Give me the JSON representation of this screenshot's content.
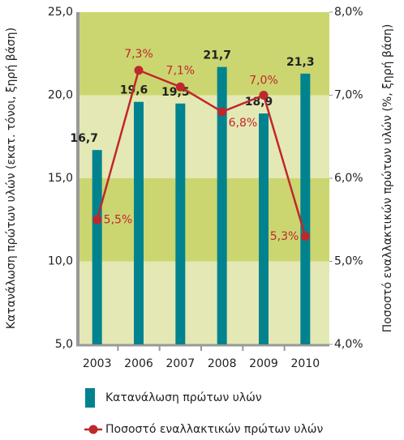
{
  "chart_data": {
    "type": "bar_line",
    "categories": [
      "2003",
      "2006",
      "2007",
      "2008",
      "2009",
      "2010"
    ],
    "series": [
      {
        "name": "Κατανάλωση πρώτων υλών",
        "type": "bar",
        "color": "#00838f",
        "values": [
          16.7,
          19.6,
          19.5,
          21.7,
          18.9,
          21.3
        ],
        "value_labels": [
          "16,7",
          "19,6",
          "19,5",
          "21,7",
          "18,9",
          "21,3"
        ]
      },
      {
        "name": "Ποσοστό εναλλακτικών πρώτων υλών",
        "type": "line",
        "axis": "y2",
        "color": "#c0272d",
        "values": [
          5.5,
          7.3,
          7.1,
          6.8,
          7.0,
          5.3
        ],
        "value_labels": [
          "5,5%",
          "7,3%",
          "7,1%",
          "6,8%",
          "7,0%",
          "5,3%"
        ]
      }
    ],
    "ylabel": "Κατανάλωση πρώτων υλών (εκατ. τόνοι, ξηρή βάση)",
    "y2label": "Ποσοστό εναλλακτικών πρώτων υλών (%, ξηρή βάση)",
    "ylim": [
      5,
      25
    ],
    "yticks": [
      {
        "value": 5,
        "label": "5,0"
      },
      {
        "value": 10,
        "label": "10,0"
      },
      {
        "value": 15,
        "label": "15,0"
      },
      {
        "value": 20,
        "label": "20,0"
      },
      {
        "value": 25,
        "label": "25,0"
      }
    ],
    "y2lim": [
      4,
      8
    ],
    "y2ticks": [
      {
        "value": 4,
        "label": "4,0%"
      },
      {
        "value": 5,
        "label": "5,0%"
      },
      {
        "value": 6,
        "label": "6,0%"
      },
      {
        "value": 7,
        "label": "7,0%"
      },
      {
        "value": 8,
        "label": "8,0%"
      }
    ],
    "band_colors": [
      "#e4e8b4",
      "#cbd670"
    ]
  }
}
